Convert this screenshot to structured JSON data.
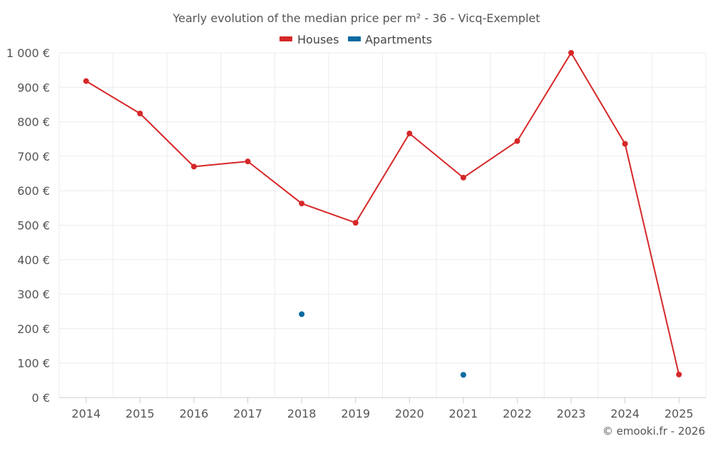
{
  "chart_data": {
    "type": "line",
    "title": "Yearly evolution of the median price per m² - 36 - Vicq-Exemplet",
    "categories": [
      "2014",
      "2015",
      "2016",
      "2017",
      "2018",
      "2019",
      "2020",
      "2021",
      "2022",
      "2023",
      "2024",
      "2025"
    ],
    "series": [
      {
        "name": "Houses",
        "color": "#d62728",
        "values": [
          918,
          824,
          670,
          685,
          563,
          507,
          766,
          638,
          744,
          1000,
          736,
          67
        ]
      },
      {
        "name": "Apartments",
        "color": "#0b6aa0",
        "values": [
          null,
          null,
          null,
          null,
          242,
          null,
          null,
          66,
          null,
          null,
          null,
          null
        ]
      }
    ],
    "ylim": [
      0,
      1000
    ],
    "yticks": [
      0,
      100,
      200,
      300,
      400,
      500,
      600,
      700,
      800,
      900,
      1000
    ],
    "ytick_labels": [
      "0 €",
      "100 €",
      "200 €",
      "300 €",
      "400 €",
      "500 €",
      "600 €",
      "700 €",
      "800 €",
      "900 €",
      "1 000 €"
    ],
    "xlabel": "",
    "ylabel": "",
    "grid": true,
    "legend_position": "top-center"
  },
  "credit": "© emooki.fr - 2026"
}
